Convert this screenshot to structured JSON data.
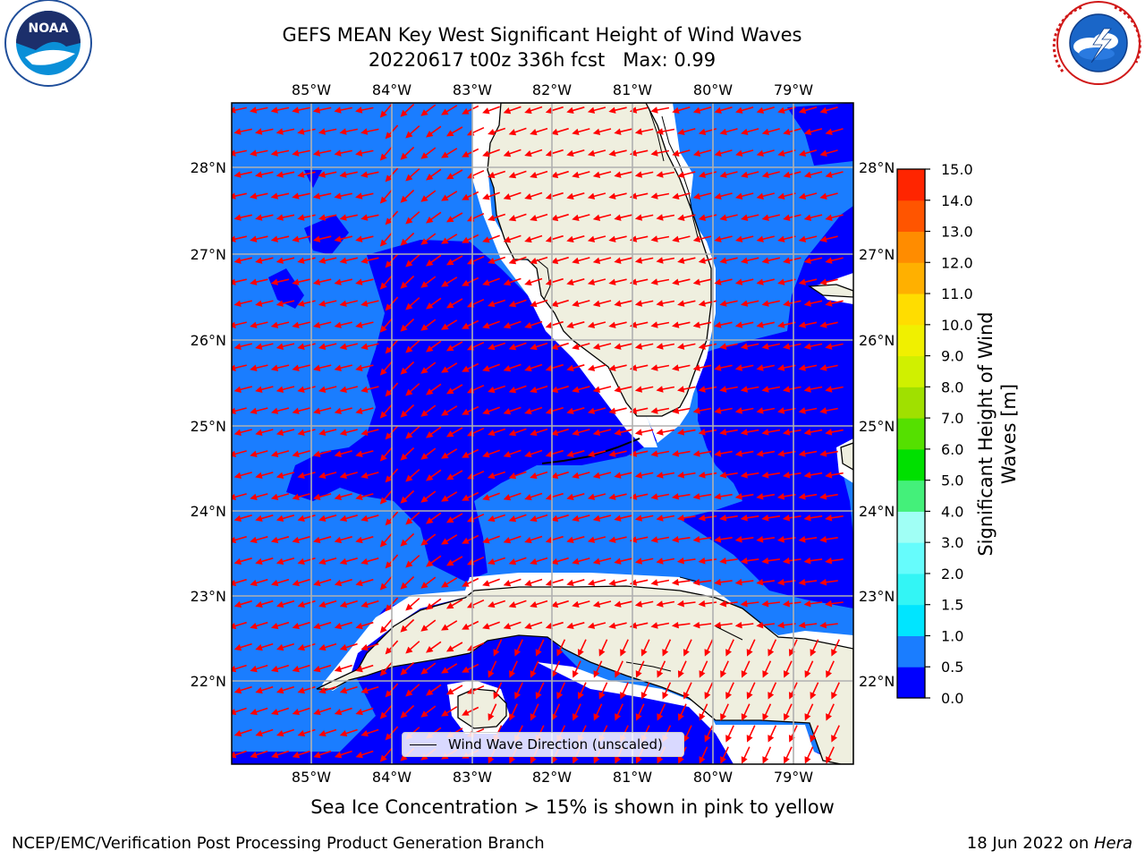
{
  "title": "GEFS MEAN Key West Significant Height of Wind Waves",
  "subtitle": "20220617 t00z 336h fcst   Max: 0.99",
  "footer_note": "Sea Ice Concentration > 15% is shown in pink to yellow",
  "footer_left": "NCEP/EMC/Verification Post Processing Product Generation Branch",
  "footer_right_prefix": "18 Jun 2022 on ",
  "footer_right_host": "Hera",
  "legend_label": "Wind Wave Direction (unscaled)",
  "colorbar": {
    "label": "Significant Height of Wind Waves [m]",
    "ticks": [
      "0.0",
      "0.5",
      "1.0",
      "1.5",
      "2.0",
      "3.0",
      "4.0",
      "5.0",
      "6.0",
      "7.0",
      "8.0",
      "9.0",
      "10.0",
      "11.0",
      "12.0",
      "13.0",
      "14.0",
      "15.0"
    ],
    "colors": [
      "#0000ff",
      "#1a7dff",
      "#00e5ff",
      "#33f5f5",
      "#66fcfc",
      "#a0fff5",
      "#44f07a",
      "#00e000",
      "#55e000",
      "#a0e000",
      "#d0f000",
      "#f0f000",
      "#ffdd00",
      "#ffb000",
      "#ff8c00",
      "#ff5500",
      "#ff2500"
    ]
  },
  "lon_labels": [
    "85°W",
    "84°W",
    "83°W",
    "82°W",
    "81°W",
    "80°W",
    "79°W"
  ],
  "lat_labels": [
    "28°N",
    "27°N",
    "26°N",
    "25°N",
    "24°N",
    "23°N",
    "22°N"
  ],
  "colors": {
    "ocean_light": "#1a7dff",
    "ocean_dark": "#0000ff",
    "land": "#efefdf",
    "arrow": "#ff0000",
    "grid": "#b0b0b0"
  },
  "logos": {
    "left": "NOAA",
    "left_ring": "NATIONAL OCEANIC AND ATMOSPHERIC ADMINISTRATION · U.S. DEPARTMENT OF COMMERCE",
    "right_ring": "NATIONAL WEATHER SERVICE"
  },
  "icons": [
    "noaa-logo-icon",
    "nws-logo-icon"
  ]
}
